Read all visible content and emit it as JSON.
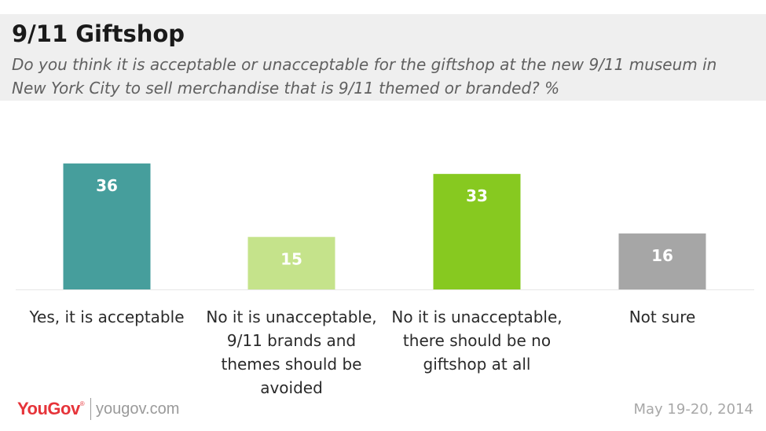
{
  "title": "9/11 Giftshop",
  "subtitle": "Do you think it is acceptable or unacceptable for the giftshop at the new 9/11 museum in New York City to sell merchandise that is 9/11 themed or branded? %",
  "footer": {
    "brand": "YouGov",
    "brand_mark": "®",
    "url": "yougov.com",
    "date": "May 19-20, 2014"
  },
  "colors": {
    "bars": [
      "#469e9c",
      "#c5e38b",
      "#87c920",
      "#a6a6a6"
    ]
  },
  "chart_data": {
    "type": "bar",
    "categories": [
      "Yes, it is acceptable",
      "No it is unacceptable, 9/11 brands and themes should be avoided",
      "No it is unacceptable, there should be no giftshop at all",
      "Not sure"
    ],
    "category_lines": [
      [
        "Yes, it is acceptable"
      ],
      [
        "No it is unacceptable,",
        "9/11 brands and",
        "themes should be",
        "avoided"
      ],
      [
        "No it is unacceptable,",
        "there should be no",
        "giftshop at all"
      ],
      [
        "Not sure"
      ]
    ],
    "values": [
      36,
      15,
      33,
      16
    ],
    "value_labels": [
      "36",
      "15",
      "33",
      "16"
    ],
    "title": "",
    "xlabel": "",
    "ylabel": "",
    "unit": "%",
    "grid": false,
    "legend": "none"
  }
}
